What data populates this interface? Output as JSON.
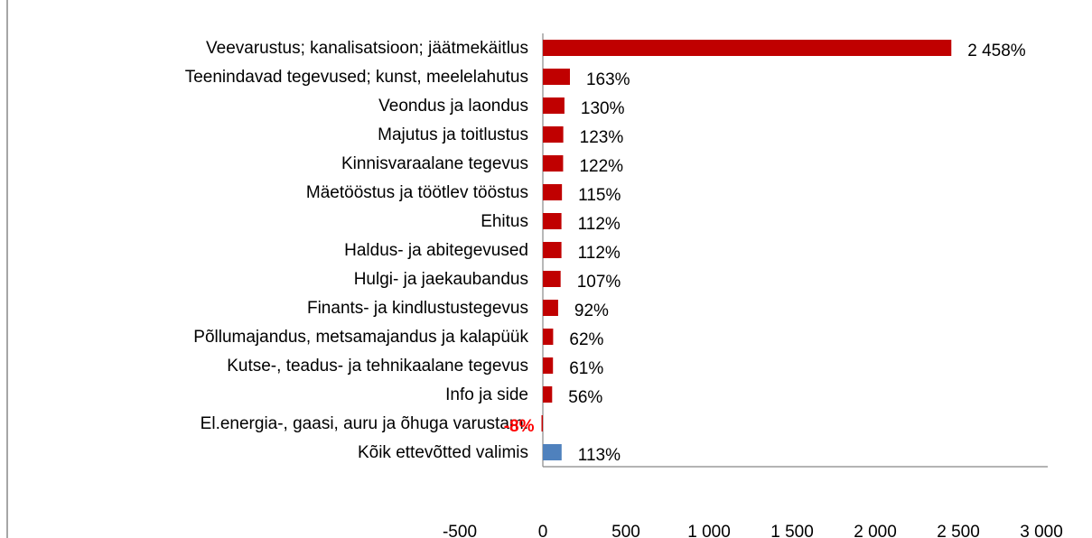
{
  "chart_data": {
    "type": "hbar",
    "categories": [
      "Veevarustus; kanalisatsioon; jäätmekäitlus",
      "Teenindavad tegevused; kunst, meelelahutus",
      "Veondus ja laondus",
      "Majutus ja toitlustus",
      "Kinnisvaraalane tegevus",
      "Mäetööstus ja töötlev tööstus",
      "Ehitus",
      "Haldus- ja abitegevused",
      "Hulgi- ja jaekaubandus",
      "Finants- ja kindlustustegevus",
      "Põllumajandus, metsamajandus ja kalapüük",
      "Kutse-, teadus- ja tehnikaalane  tegevus",
      "Info ja side",
      "El.energia-, gaasi, auru ja õhuga varustam.",
      "Kõik ettevõtted valimis"
    ],
    "values": [
      2458,
      163,
      130,
      123,
      122,
      115,
      112,
      112,
      107,
      92,
      62,
      61,
      56,
      -8,
      113
    ],
    "value_labels": [
      "2 458%",
      "163%",
      "130%",
      "123%",
      "122%",
      "115%",
      "112%",
      "112%",
      "107%",
      "92%",
      "62%",
      "61%",
      "56%",
      "-8%",
      "113%"
    ],
    "colors": [
      "#c00000",
      "#c00000",
      "#c00000",
      "#c00000",
      "#c00000",
      "#c00000",
      "#c00000",
      "#c00000",
      "#c00000",
      "#c00000",
      "#c00000",
      "#c00000",
      "#c00000",
      "#c00000",
      "#4f81bd"
    ],
    "xlim": [
      -500,
      3000
    ],
    "xticks": [
      -500,
      0,
      500,
      {
        "value": 1000,
        "label": "1 000"
      },
      {
        "value": 1500,
        "label": "1 500"
      },
      {
        "value": 2000,
        "label": "2 000"
      },
      {
        "value": 2500,
        "label": "2 500"
      },
      {
        "value": 3000,
        "label": "3 000"
      }
    ]
  }
}
